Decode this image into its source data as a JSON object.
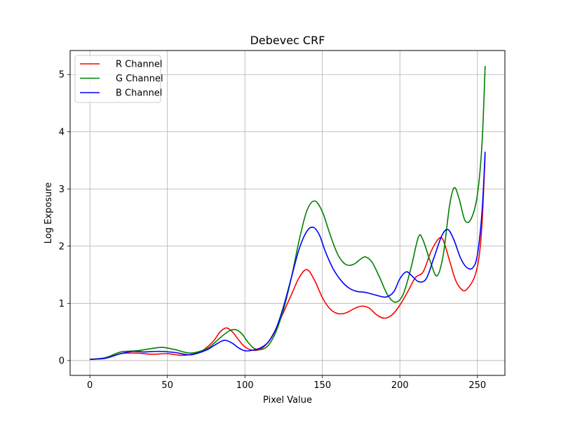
{
  "chart_data": {
    "type": "line",
    "title": "Debevec CRF",
    "xlabel": "Pixel Value",
    "ylabel": "Log Exposure",
    "xlim": [
      -12.75,
      267.75
    ],
    "ylim": [
      -0.26,
      5.42
    ],
    "xticks": [
      0,
      50,
      100,
      150,
      200,
      250
    ],
    "yticks": [
      0,
      1,
      2,
      3,
      4,
      5
    ],
    "grid": true,
    "legend_position": "top-left",
    "series": [
      {
        "name": "R Channel",
        "color": "#ff0000",
        "points": [
          [
            0,
            0.02
          ],
          [
            10,
            0.04
          ],
          [
            20,
            0.12
          ],
          [
            30,
            0.13
          ],
          [
            40,
            0.11
          ],
          [
            50,
            0.12
          ],
          [
            60,
            0.09
          ],
          [
            70,
            0.14
          ],
          [
            75,
            0.22
          ],
          [
            80,
            0.35
          ],
          [
            84,
            0.5
          ],
          [
            88,
            0.57
          ],
          [
            92,
            0.5
          ],
          [
            96,
            0.36
          ],
          [
            100,
            0.24
          ],
          [
            105,
            0.18
          ],
          [
            110,
            0.2
          ],
          [
            115,
            0.32
          ],
          [
            120,
            0.55
          ],
          [
            125,
            0.85
          ],
          [
            130,
            1.15
          ],
          [
            135,
            1.45
          ],
          [
            140,
            1.59
          ],
          [
            145,
            1.4
          ],
          [
            150,
            1.1
          ],
          [
            155,
            0.9
          ],
          [
            160,
            0.82
          ],
          [
            165,
            0.83
          ],
          [
            170,
            0.9
          ],
          [
            175,
            0.95
          ],
          [
            180,
            0.92
          ],
          [
            185,
            0.8
          ],
          [
            190,
            0.74
          ],
          [
            195,
            0.8
          ],
          [
            200,
            0.97
          ],
          [
            205,
            1.2
          ],
          [
            210,
            1.45
          ],
          [
            215,
            1.55
          ],
          [
            220,
            1.9
          ],
          [
            225,
            2.13
          ],
          [
            228,
            2.1
          ],
          [
            232,
            1.75
          ],
          [
            236,
            1.4
          ],
          [
            240,
            1.24
          ],
          [
            243,
            1.24
          ],
          [
            248,
            1.45
          ],
          [
            251,
            1.8
          ],
          [
            253,
            2.4
          ],
          [
            255,
            3.6
          ]
        ]
      },
      {
        "name": "G Channel",
        "color": "#008000",
        "points": [
          [
            0,
            0.02
          ],
          [
            10,
            0.05
          ],
          [
            20,
            0.15
          ],
          [
            30,
            0.17
          ],
          [
            40,
            0.21
          ],
          [
            47,
            0.23
          ],
          [
            55,
            0.19
          ],
          [
            65,
            0.13
          ],
          [
            75,
            0.2
          ],
          [
            80,
            0.3
          ],
          [
            85,
            0.42
          ],
          [
            90,
            0.52
          ],
          [
            94,
            0.54
          ],
          [
            98,
            0.47
          ],
          [
            102,
            0.32
          ],
          [
            106,
            0.21
          ],
          [
            110,
            0.19
          ],
          [
            115,
            0.26
          ],
          [
            120,
            0.5
          ],
          [
            125,
            0.9
          ],
          [
            130,
            1.45
          ],
          [
            135,
            2.1
          ],
          [
            140,
            2.62
          ],
          [
            145,
            2.79
          ],
          [
            150,
            2.6
          ],
          [
            155,
            2.2
          ],
          [
            160,
            1.85
          ],
          [
            165,
            1.68
          ],
          [
            170,
            1.68
          ],
          [
            175,
            1.78
          ],
          [
            178,
            1.81
          ],
          [
            182,
            1.72
          ],
          [
            187,
            1.45
          ],
          [
            192,
            1.15
          ],
          [
            197,
            1.02
          ],
          [
            202,
            1.15
          ],
          [
            207,
            1.6
          ],
          [
            212,
            2.16
          ],
          [
            215,
            2.1
          ],
          [
            220,
            1.7
          ],
          [
            224,
            1.48
          ],
          [
            228,
            1.85
          ],
          [
            232,
            2.7
          ],
          [
            235,
            3.02
          ],
          [
            238,
            2.85
          ],
          [
            242,
            2.45
          ],
          [
            246,
            2.48
          ],
          [
            250,
            2.9
          ],
          [
            253,
            3.8
          ],
          [
            255,
            5.15
          ]
        ]
      },
      {
        "name": "B Channel",
        "color": "#0000ff",
        "points": [
          [
            0,
            0.02
          ],
          [
            10,
            0.04
          ],
          [
            20,
            0.12
          ],
          [
            28,
            0.16
          ],
          [
            35,
            0.15
          ],
          [
            45,
            0.16
          ],
          [
            55,
            0.14
          ],
          [
            65,
            0.1
          ],
          [
            75,
            0.18
          ],
          [
            80,
            0.26
          ],
          [
            85,
            0.34
          ],
          [
            88,
            0.35
          ],
          [
            92,
            0.3
          ],
          [
            96,
            0.22
          ],
          [
            100,
            0.17
          ],
          [
            105,
            0.18
          ],
          [
            110,
            0.22
          ],
          [
            115,
            0.32
          ],
          [
            120,
            0.55
          ],
          [
            125,
            0.95
          ],
          [
            130,
            1.45
          ],
          [
            135,
            1.95
          ],
          [
            140,
            2.26
          ],
          [
            144,
            2.33
          ],
          [
            148,
            2.2
          ],
          [
            152,
            1.9
          ],
          [
            157,
            1.6
          ],
          [
            162,
            1.4
          ],
          [
            167,
            1.27
          ],
          [
            172,
            1.21
          ],
          [
            178,
            1.19
          ],
          [
            185,
            1.14
          ],
          [
            191,
            1.11
          ],
          [
            196,
            1.2
          ],
          [
            200,
            1.43
          ],
          [
            204,
            1.55
          ],
          [
            207,
            1.5
          ],
          [
            212,
            1.38
          ],
          [
            217,
            1.43
          ],
          [
            222,
            1.8
          ],
          [
            227,
            2.18
          ],
          [
            231,
            2.29
          ],
          [
            235,
            2.1
          ],
          [
            239,
            1.8
          ],
          [
            243,
            1.63
          ],
          [
            247,
            1.62
          ],
          [
            250,
            1.85
          ],
          [
            253,
            2.6
          ],
          [
            255,
            3.65
          ]
        ]
      }
    ]
  }
}
